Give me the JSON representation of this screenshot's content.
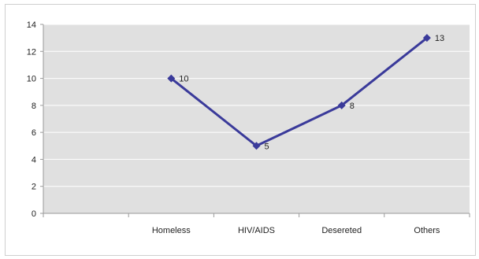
{
  "chart_data": {
    "type": "line",
    "categories": [
      "",
      "Homeless",
      "HIV/AIDS",
      "Desereted",
      "Others"
    ],
    "series": [
      {
        "values": [
          null,
          10,
          5,
          8,
          13
        ]
      }
    ],
    "ylim": [
      0,
      14
    ],
    "yticks": [
      "0",
      "2",
      "4",
      "6",
      "8",
      "10",
      "12",
      "14"
    ],
    "data_labels": [
      "10",
      "5",
      "8",
      "13"
    ],
    "grid": true,
    "legend": "none"
  },
  "colors": {
    "plot_background": "#e0e0e0",
    "series_line": "#3a3a9a",
    "gridline": "#ffffff",
    "axis": "#9a9a9a"
  }
}
